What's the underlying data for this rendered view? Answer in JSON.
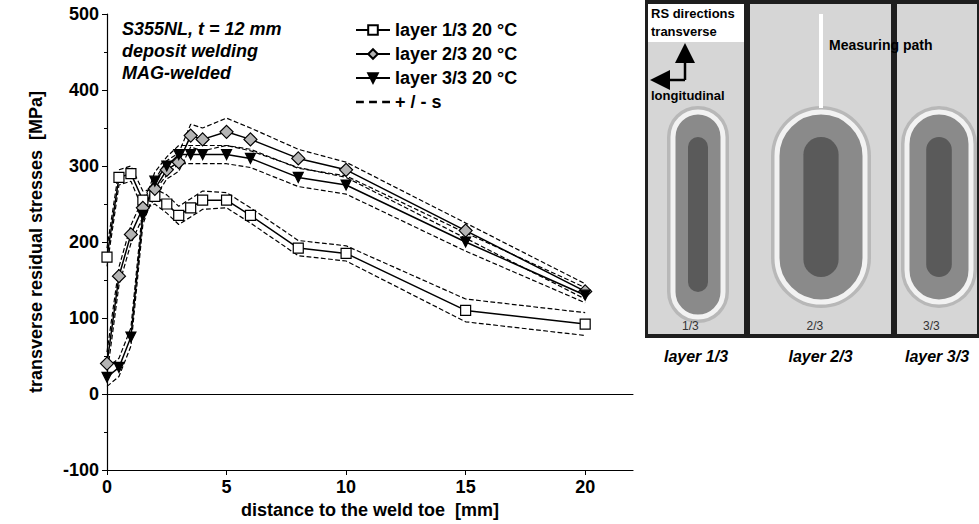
{
  "chart_data": {
    "type": "line",
    "annotation": [
      "S355NL, t = 12 mm",
      "deposit welding",
      "MAG-welded"
    ],
    "x_label": "distance to the weld toe  [mm]",
    "y_label": "transverse residual stresses  [MPa]",
    "xlim": [
      0,
      22
    ],
    "xticks": [
      0,
      5,
      10,
      15,
      20
    ],
    "ylim": [
      -100,
      500
    ],
    "yticks": [
      -100,
      0,
      100,
      200,
      300,
      400,
      500
    ],
    "grid": false,
    "legend": "top-right",
    "error_legend": "+ / - s",
    "series": [
      {
        "name": "layer 1/3 20 °C",
        "color": "#ffffff",
        "marker": "square",
        "line_style": "solid",
        "x": [
          0,
          0.5,
          1,
          1.5,
          2,
          2.5,
          3,
          3.5,
          4,
          5,
          6,
          8,
          10,
          15,
          20
        ],
        "values": [
          180,
          285,
          290,
          255,
          260,
          250,
          235,
          245,
          255,
          255,
          235,
          192,
          185,
          110,
          92
        ],
        "s": [
          12,
          10,
          10,
          12,
          10,
          12,
          12,
          12,
          12,
          10,
          10,
          10,
          10,
          15,
          15
        ]
      },
      {
        "name": "layer 2/3 20 °C",
        "color": "#b4b4b4",
        "marker": "diamond",
        "line_style": "solid",
        "x": [
          0,
          0.5,
          1,
          1.5,
          2,
          2.5,
          3,
          3.5,
          4,
          5,
          6,
          8,
          10,
          15,
          20
        ],
        "values": [
          40,
          155,
          210,
          245,
          270,
          295,
          305,
          340,
          335,
          345,
          335,
          310,
          295,
          215,
          135
        ],
        "s": [
          15,
          12,
          12,
          12,
          12,
          12,
          12,
          15,
          15,
          18,
          15,
          12,
          10,
          10,
          10
        ]
      },
      {
        "name": "layer 3/3 20 °C",
        "color": "#000000",
        "marker": "triangle-down",
        "line_style": "solid",
        "x": [
          0,
          0.5,
          1,
          1.5,
          2,
          2.5,
          3,
          3.5,
          4,
          5,
          6,
          8,
          10,
          15,
          20
        ],
        "values": [
          22,
          35,
          75,
          235,
          280,
          300,
          315,
          315,
          315,
          315,
          310,
          285,
          275,
          200,
          130
        ],
        "s": [
          12,
          12,
          12,
          12,
          12,
          12,
          12,
          12,
          12,
          12,
          12,
          12,
          12,
          12,
          10
        ]
      }
    ]
  },
  "photo": {
    "rs_directions": "RS directions",
    "transverse": "transverse",
    "longitudinal": "longitudinal",
    "measuring_path": "Measuring path",
    "specimen_marks": [
      "1/3",
      "2/3",
      "3/3"
    ],
    "captions": [
      "layer 1/3",
      "layer 2/3",
      "layer 3/3"
    ]
  }
}
